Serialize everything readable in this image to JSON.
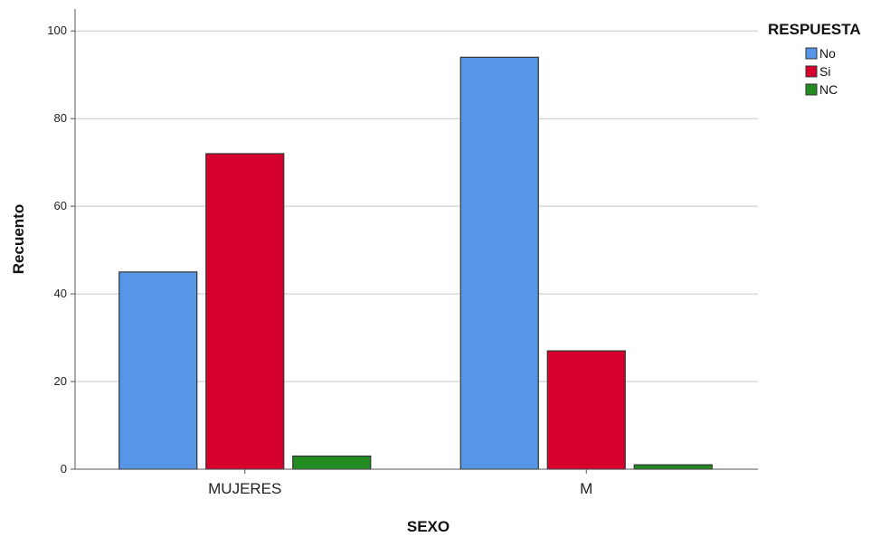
{
  "chart_data": {
    "type": "bar",
    "categories": [
      "MUJERES",
      "M"
    ],
    "series": [
      {
        "name": "No",
        "values": [
          45,
          94
        ],
        "color": "#5596e6"
      },
      {
        "name": "Si",
        "values": [
          72,
          27
        ],
        "color": "#d5002b"
      },
      {
        "name": "NC",
        "values": [
          3,
          1
        ],
        "color": "#228b22"
      }
    ],
    "xlabel": "SEXO",
    "ylabel": "Recuento",
    "ylim": [
      0,
      105
    ],
    "yticks": [
      0,
      20,
      40,
      60,
      80,
      100
    ],
    "legend": {
      "title": "RESPUESTA",
      "placement": "top-right"
    },
    "grid": true
  }
}
